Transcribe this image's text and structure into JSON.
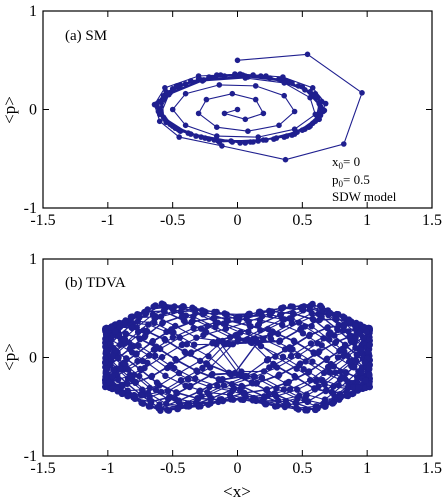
{
  "figure": {
    "colors": {
      "series": "#1f1f8f",
      "axis": "#000000",
      "background": "#ffffff"
    }
  },
  "chart_data": [
    {
      "type": "line",
      "panel_label": "(a) SM",
      "xlabel": "",
      "ylabel": "<p>",
      "xlim": [
        -1.5,
        1.5
      ],
      "ylim": [
        -1,
        1
      ],
      "xticks": [
        "-1.5",
        "-1",
        "-0.5",
        "0",
        "0.5",
        "1",
        "1.5"
      ],
      "yticks": [
        "-1",
        "0",
        "1"
      ],
      "grid": false,
      "annotation": {
        "x0_symbol": "x",
        "x0_sub": "0",
        "x0_text": "= 0",
        "p0_symbol": "p",
        "p0_sub": "0",
        "p0_text": "= 0.5",
        "model": "SDW model"
      },
      "series": [
        {
          "marker": "circle",
          "points": [
            [
              0,
              0.5
            ],
            [
              0.54,
              0.56
            ],
            [
              0.96,
              0.17
            ],
            [
              0.82,
              -0.35
            ],
            [
              0.37,
              -0.51
            ],
            [
              -0.12,
              -0.37
            ],
            [
              -0.45,
              -0.28
            ],
            [
              -0.6,
              -0.12
            ],
            [
              -0.64,
              0.05
            ],
            [
              -0.56,
              0.22
            ],
            [
              -0.3,
              0.34
            ],
            [
              0.02,
              0.36
            ],
            [
              0.35,
              0.33
            ],
            [
              0.58,
              0.22
            ],
            [
              0.68,
              0.06
            ],
            [
              0.62,
              -0.1
            ],
            [
              0.42,
              -0.26
            ],
            [
              0.1,
              -0.33
            ],
            [
              -0.25,
              -0.29
            ],
            [
              -0.5,
              -0.17
            ],
            [
              -0.6,
              0.0
            ],
            [
              -0.52,
              0.17
            ],
            [
              -0.26,
              0.3
            ],
            [
              0.08,
              0.33
            ],
            [
              0.4,
              0.28
            ],
            [
              0.6,
              0.15
            ],
            [
              0.66,
              -0.02
            ],
            [
              0.55,
              -0.18
            ],
            [
              0.28,
              -0.3
            ],
            [
              -0.05,
              -0.32
            ],
            [
              -0.38,
              -0.24
            ],
            [
              -0.57,
              -0.08
            ],
            [
              -0.58,
              0.1
            ],
            [
              -0.4,
              0.26
            ],
            [
              -0.1,
              0.34
            ],
            [
              0.25,
              0.32
            ],
            [
              0.52,
              0.2
            ],
            [
              0.64,
              0.03
            ],
            [
              0.58,
              -0.14
            ],
            [
              0.36,
              -0.28
            ],
            [
              0.02,
              -0.34
            ],
            [
              -0.32,
              -0.27
            ],
            [
              -0.55,
              -0.13
            ],
            [
              -0.62,
              0.06
            ],
            [
              -0.47,
              0.24
            ],
            [
              -0.16,
              0.35
            ],
            [
              0.18,
              0.34
            ],
            [
              0.47,
              0.24
            ],
            [
              0.65,
              0.08
            ],
            [
              0.63,
              -0.1
            ],
            [
              0.44,
              -0.25
            ],
            [
              0.12,
              -0.33
            ],
            [
              -0.22,
              -0.3
            ],
            [
              -0.48,
              -0.19
            ],
            [
              -0.61,
              -0.02
            ],
            [
              -0.55,
              0.18
            ],
            [
              -0.3,
              0.31
            ],
            [
              0.04,
              0.35
            ],
            [
              0.36,
              0.3
            ],
            [
              0.6,
              0.16
            ],
            [
              0.67,
              -0.01
            ],
            [
              0.52,
              -0.2
            ],
            [
              0.22,
              -0.31
            ],
            [
              -0.14,
              -0.33
            ],
            [
              -0.44,
              -0.22
            ],
            [
              -0.6,
              -0.05
            ],
            [
              -0.57,
              0.14
            ],
            [
              -0.36,
              0.29
            ],
            [
              -0.02,
              0.36
            ],
            [
              0.32,
              0.31
            ],
            [
              0.56,
              0.18
            ],
            [
              0.66,
              0.0
            ],
            [
              0.56,
              -0.17
            ],
            [
              0.3,
              -0.29
            ],
            [
              -0.04,
              -0.33
            ],
            [
              -0.36,
              -0.25
            ],
            [
              -0.56,
              -0.1
            ],
            [
              -0.6,
              0.08
            ],
            [
              -0.44,
              0.25
            ],
            [
              -0.13,
              0.35
            ],
            [
              0.22,
              0.34
            ],
            [
              0.5,
              0.23
            ],
            [
              0.63,
              0.06
            ],
            [
              0.6,
              -0.12
            ],
            [
              0.38,
              -0.27
            ],
            [
              0.06,
              -0.34
            ],
            [
              -0.28,
              -0.28
            ],
            [
              -0.52,
              -0.15
            ],
            [
              -0.62,
              0.03
            ],
            [
              -0.5,
              0.21
            ],
            [
              -0.22,
              0.33
            ],
            [
              0.12,
              0.35
            ],
            [
              0.42,
              0.27
            ],
            [
              0.62,
              0.12
            ],
            [
              0.64,
              -0.06
            ],
            [
              0.46,
              -0.23
            ],
            [
              0.16,
              -0.32
            ],
            [
              -0.18,
              -0.31
            ],
            [
              -0.46,
              -0.2
            ],
            [
              -0.6,
              -0.03
            ],
            [
              -0.54,
              0.16
            ],
            [
              -0.28,
              0.3
            ],
            [
              0.06,
              0.34
            ],
            [
              0.38,
              0.29
            ],
            [
              0.6,
              0.14
            ],
            [
              0.64,
              -0.04
            ],
            [
              0.5,
              -0.21
            ],
            [
              0.2,
              -0.31
            ],
            [
              -0.15,
              -0.32
            ],
            [
              -0.45,
              -0.21
            ],
            [
              -0.59,
              -0.04
            ],
            [
              -0.53,
              0.15
            ],
            [
              -0.27,
              0.29
            ],
            [
              0.06,
              0.32
            ],
            [
              0.36,
              0.27
            ],
            [
              0.56,
              0.12
            ],
            [
              0.6,
              -0.05
            ],
            [
              0.44,
              -0.2
            ],
            [
              0.16,
              -0.28
            ],
            [
              -0.16,
              -0.27
            ],
            [
              -0.4,
              -0.16
            ],
            [
              -0.5,
              0.0
            ],
            [
              -0.4,
              0.16
            ],
            [
              -0.14,
              0.25
            ],
            [
              0.14,
              0.24
            ],
            [
              0.36,
              0.14
            ],
            [
              0.44,
              -0.02
            ],
            [
              0.32,
              -0.16
            ],
            [
              0.08,
              -0.22
            ],
            [
              -0.16,
              -0.18
            ],
            [
              -0.3,
              -0.04
            ],
            [
              -0.24,
              0.1
            ],
            [
              -0.04,
              0.16
            ],
            [
              0.14,
              0.1
            ],
            [
              0.2,
              -0.04
            ],
            [
              0.06,
              -0.1
            ],
            [
              -0.1,
              -0.04
            ],
            [
              0.0,
              0.0
            ]
          ]
        }
      ]
    },
    {
      "type": "line",
      "panel_label": "(b) TDVA",
      "xlabel": "<x>",
      "ylabel": "<p>",
      "xlim": [
        -1.5,
        1.5
      ],
      "ylim": [
        -1,
        1
      ],
      "xticks": [
        "-1.5",
        "-1",
        "-0.5",
        "0",
        "0.5",
        "1",
        "1.5"
      ],
      "yticks": [
        "-1",
        "0",
        "1"
      ],
      "grid": false,
      "series": [
        {
          "marker": "circle",
          "description_visible": "dense trajectory filling a bow-tie region x in [-1, 1], |p| <= 0.55, with hole near origin",
          "x_range": [
            -1.02,
            1.02
          ],
          "p_envelope_at_x": [
            [
              0.0,
              0.42
            ],
            [
              0.3,
              0.5
            ],
            [
              0.6,
              0.55
            ],
            [
              1.0,
              0.3
            ]
          ],
          "hole_p_at_origin": 0.05
        }
      ]
    }
  ]
}
